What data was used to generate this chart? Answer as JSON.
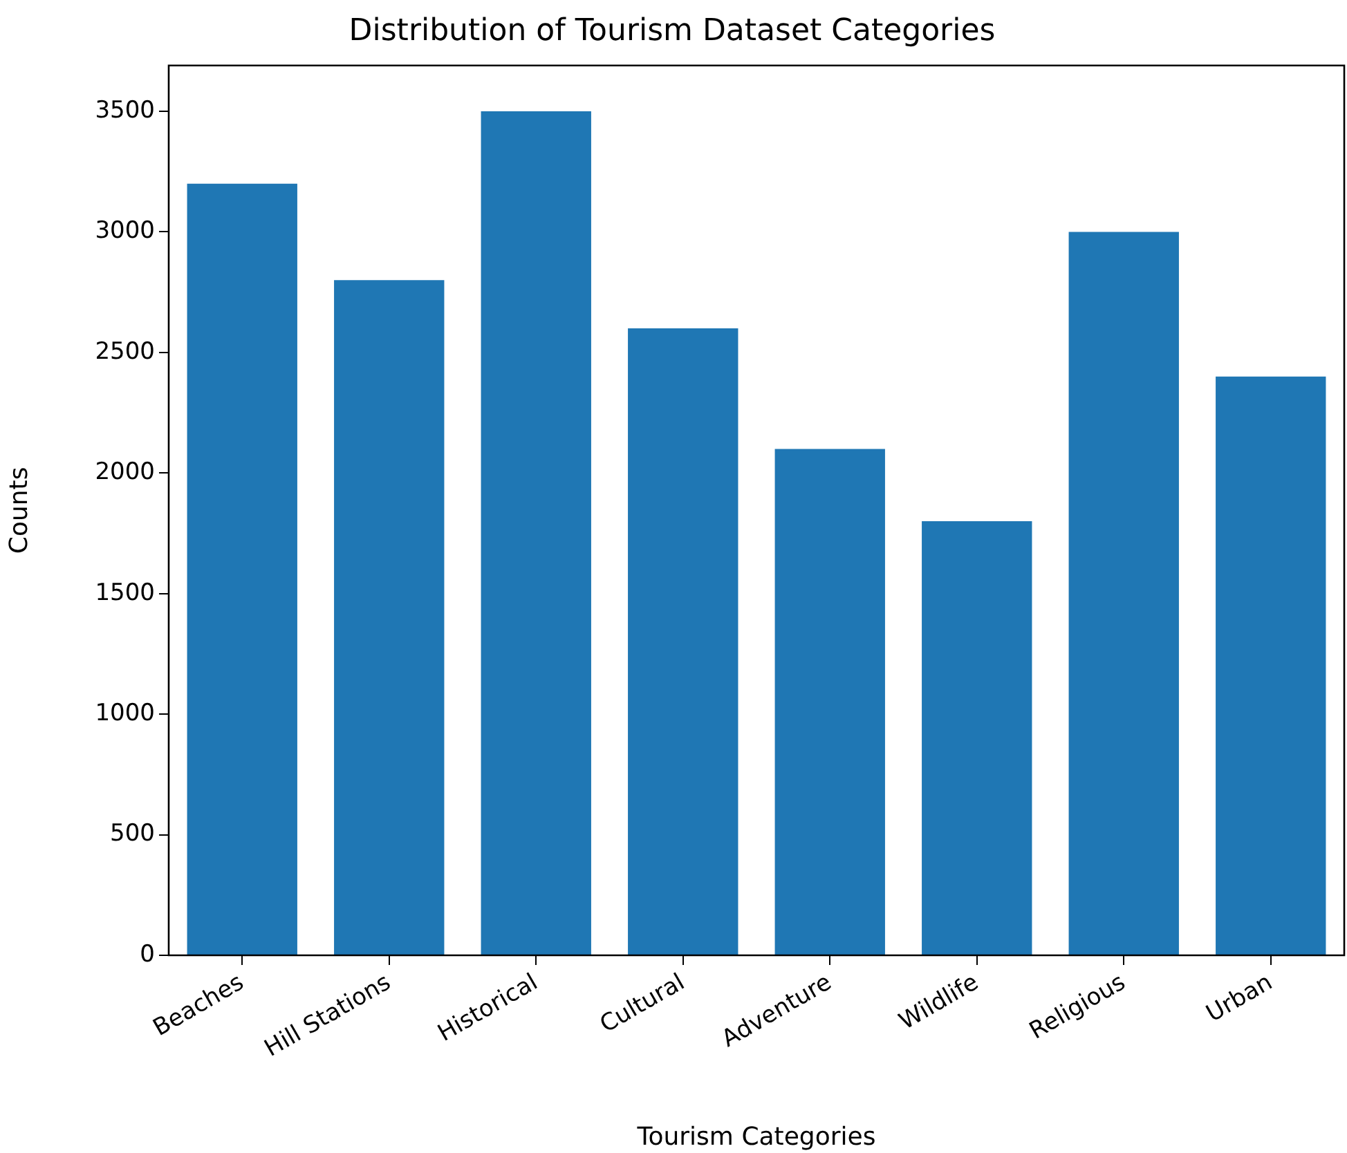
{
  "chart_data": {
    "type": "bar",
    "title": "Distribution of Tourism Dataset Categories",
    "xlabel": "Tourism Categories",
    "ylabel": "Counts",
    "categories": [
      "Beaches",
      "Hill Stations",
      "Historical",
      "Cultural",
      "Adventure",
      "Wildlife",
      "Religious",
      "Urban"
    ],
    "values": [
      3200,
      2800,
      3500,
      2600,
      2100,
      1800,
      3000,
      2400
    ],
    "color": "#1f77b4",
    "ylim": [
      0,
      3690
    ],
    "yticks": [
      0,
      500,
      1000,
      1500,
      2000,
      2500,
      3000,
      3500
    ],
    "grid": false,
    "legend": false
  }
}
